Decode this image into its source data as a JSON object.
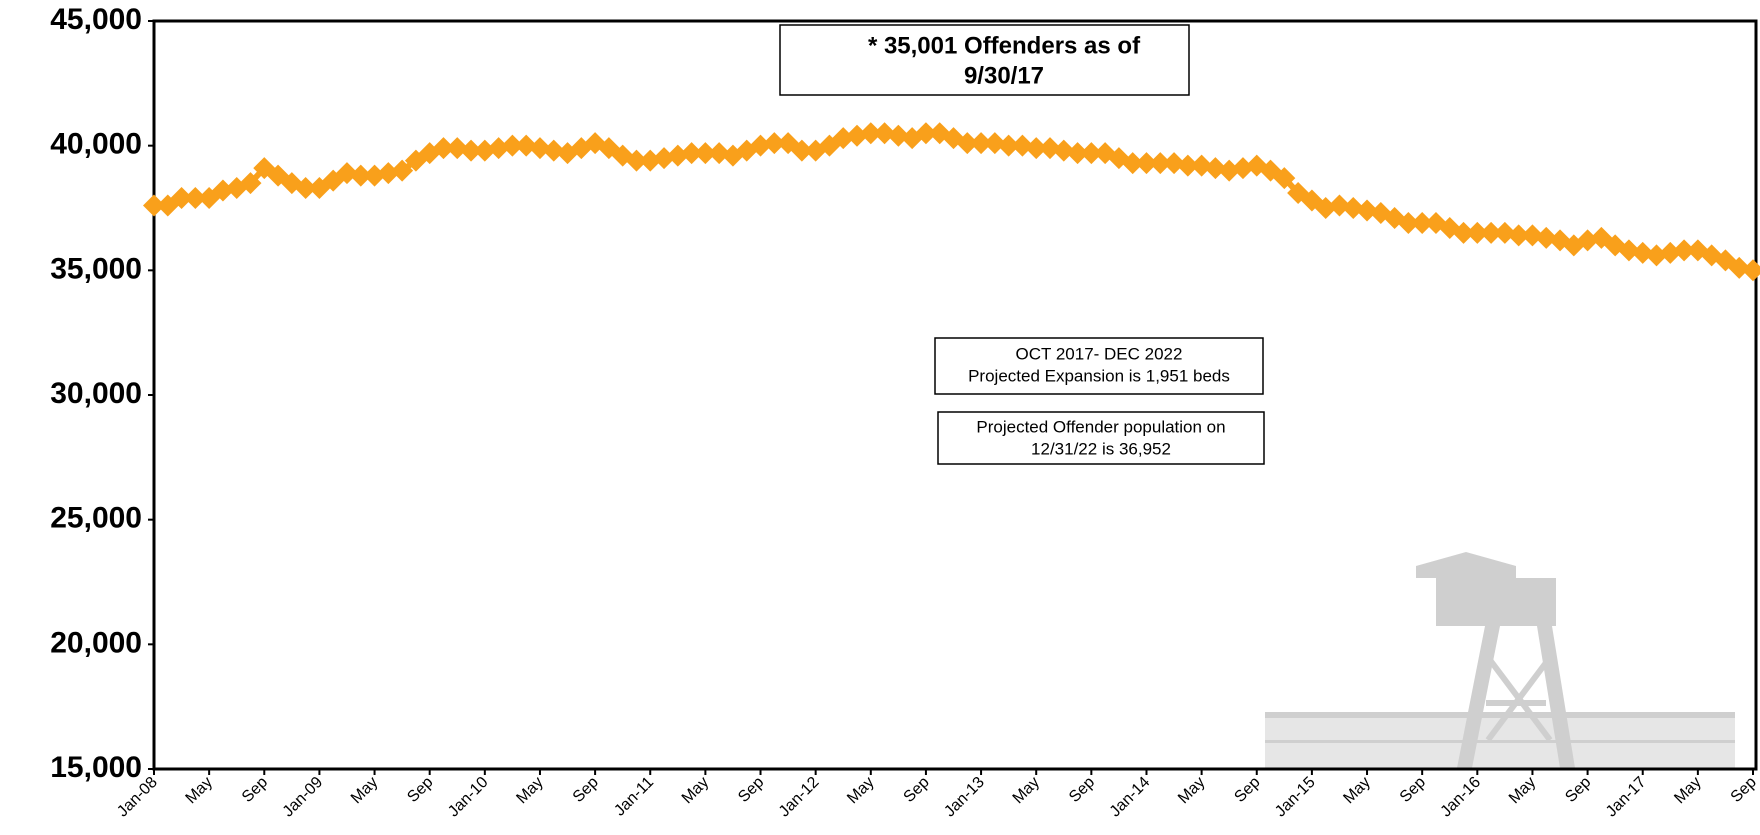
{
  "chart_data": {
    "type": "line",
    "categories": [
      "Jan-08",
      null,
      null,
      null,
      "May",
      null,
      null,
      null,
      "Sep",
      null,
      null,
      null,
      "Jan-09",
      null,
      null,
      null,
      "May",
      null,
      null,
      null,
      "Sep",
      null,
      null,
      null,
      "Jan-10",
      null,
      null,
      null,
      "May",
      null,
      null,
      null,
      "Sep",
      null,
      null,
      null,
      "Jan-11",
      null,
      null,
      null,
      "May",
      null,
      null,
      null,
      "Sep",
      null,
      null,
      null,
      "Jan-12",
      null,
      null,
      null,
      "May",
      null,
      null,
      null,
      "Sep",
      null,
      null,
      null,
      "Jan-13",
      null,
      null,
      null,
      "May",
      null,
      null,
      null,
      "Sep",
      null,
      null,
      null,
      "Jan-14",
      null,
      null,
      null,
      "May",
      null,
      null,
      null,
      "Sep",
      null,
      null,
      null,
      "Jan-15",
      null,
      null,
      null,
      "May",
      null,
      null,
      null,
      "Sep",
      null,
      null,
      null,
      "Jan-16",
      null,
      null,
      null,
      "May",
      null,
      null,
      null,
      "Sep",
      null,
      null,
      null,
      "Jan-17",
      null,
      null,
      null,
      "May",
      null,
      null,
      null,
      "Sep"
    ],
    "series": [
      {
        "color": "#f9a01b",
        "values": [
          37600,
          37600,
          37900,
          37900,
          37900,
          38200,
          38300,
          38500,
          39100,
          38800,
          38500,
          38300,
          38300,
          38600,
          38900,
          38800,
          38800,
          38900,
          39000,
          39400,
          39700,
          39900,
          39900,
          39800,
          39800,
          39900,
          40000,
          40000,
          39900,
          39800,
          39700,
          39900,
          40100,
          39900,
          39600,
          39400,
          39400,
          39500,
          39600,
          39700,
          39700,
          39700,
          39600,
          39800,
          40000,
          40100,
          40100,
          39800,
          39800,
          40000,
          40300,
          40400,
          40500,
          40500,
          40400,
          40300,
          40500,
          40500,
          40300,
          40100,
          40100,
          40100,
          40000,
          40000,
          39900,
          39900,
          39800,
          39700,
          39700,
          39700,
          39500,
          39300,
          39300,
          39300,
          39300,
          39200,
          39200,
          39100,
          39000,
          39100,
          39200,
          39000,
          38700,
          38100,
          37800,
          37500,
          37600,
          37500,
          37400,
          37300,
          37100,
          36900,
          36900,
          36900,
          36700,
          36500,
          36500,
          36500,
          36500,
          36400,
          36400,
          36300,
          36200,
          36000,
          36200,
          36300,
          36000,
          35800,
          35700,
          35600,
          35700,
          35800,
          35800,
          35600,
          35400,
          35100,
          35001
        ]
      }
    ],
    "ylim": [
      15000,
      45000
    ],
    "yticks": [
      {
        "value": 15000,
        "label": "15,000"
      },
      {
        "value": 20000,
        "label": "20,000"
      },
      {
        "value": 25000,
        "label": "25,000"
      },
      {
        "value": 30000,
        "label": "30,000"
      },
      {
        "value": 35000,
        "label": "35,000"
      },
      {
        "value": 40000,
        "label": "40,000"
      },
      {
        "value": 45000,
        "label": "45,000"
      }
    ],
    "annotations": [
      {
        "lines": [
          "* 35,001 Offenders as of",
          "9/30/17"
        ]
      },
      {
        "lines": [
          "OCT 2017- DEC 2022",
          "Projected Expansion is 1,951 beds"
        ]
      },
      {
        "lines": [
          "Projected Offender population on",
          "12/31/22 is 36,952"
        ]
      }
    ]
  }
}
